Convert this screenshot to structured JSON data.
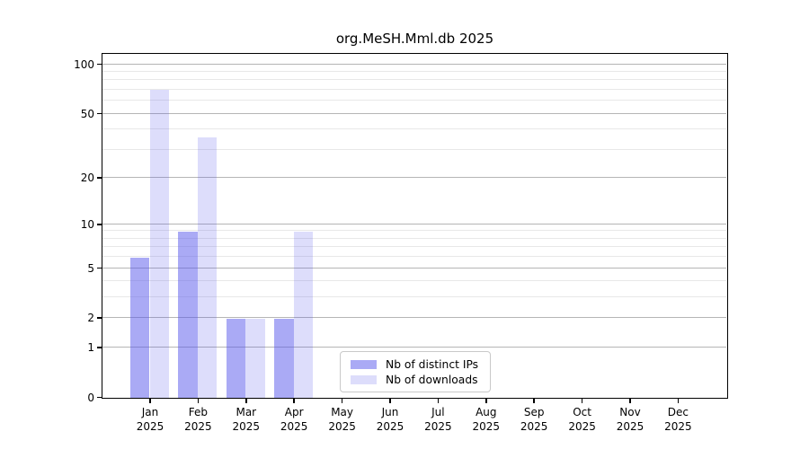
{
  "title": "org.MeSH.Mml.db 2025",
  "colors": {
    "bar_distinct_ips": "rgba(85,85,235,0.5)",
    "bar_downloads": "rgba(85,85,235,0.2)",
    "bar_distinct_ips_flat": "#aaaaf5",
    "bar_downloads_flat": "#dcdcf7",
    "grid_major": "#b5b5b5",
    "grid_minor": "#e8e8e8",
    "spine": "#000000",
    "background": "#ffffff",
    "text": "#000000"
  },
  "legend": {
    "items": [
      {
        "label": "Nb of distinct IPs",
        "color_key": "bar_distinct_ips"
      },
      {
        "label": "Nb of downloads",
        "color_key": "bar_downloads"
      }
    ]
  },
  "chart_data": {
    "type": "bar",
    "title": "org.MeSH.Mml.db 2025",
    "yscale": "log1p",
    "categories": [
      "Jan",
      "Feb",
      "Mar",
      "Apr",
      "May",
      "Jun",
      "Jul",
      "Aug",
      "Sep",
      "Oct",
      "Nov",
      "Dec"
    ],
    "year": "2025",
    "series": [
      {
        "name": "Nb of distinct IPs",
        "key": "distinct-ips",
        "color_key": "bar_distinct_ips",
        "values": [
          6,
          9,
          2,
          2,
          0,
          0,
          0,
          0,
          0,
          0,
          0,
          0
        ]
      },
      {
        "name": "Nb of downloads",
        "key": "downloads",
        "color_key": "bar_downloads",
        "values": [
          70,
          36,
          2,
          9,
          0,
          0,
          0,
          0,
          0,
          0,
          0,
          0
        ]
      }
    ],
    "y_major_ticks": [
      0,
      1,
      2,
      5,
      10,
      20,
      50,
      100
    ],
    "y_minor_ticks": [
      3,
      4,
      6,
      7,
      8,
      9,
      30,
      40,
      60,
      70,
      80,
      90
    ],
    "ylim": [
      0,
      115
    ],
    "xlabel": "",
    "ylabel": "",
    "grid": true,
    "legend_position": "lower-center"
  }
}
